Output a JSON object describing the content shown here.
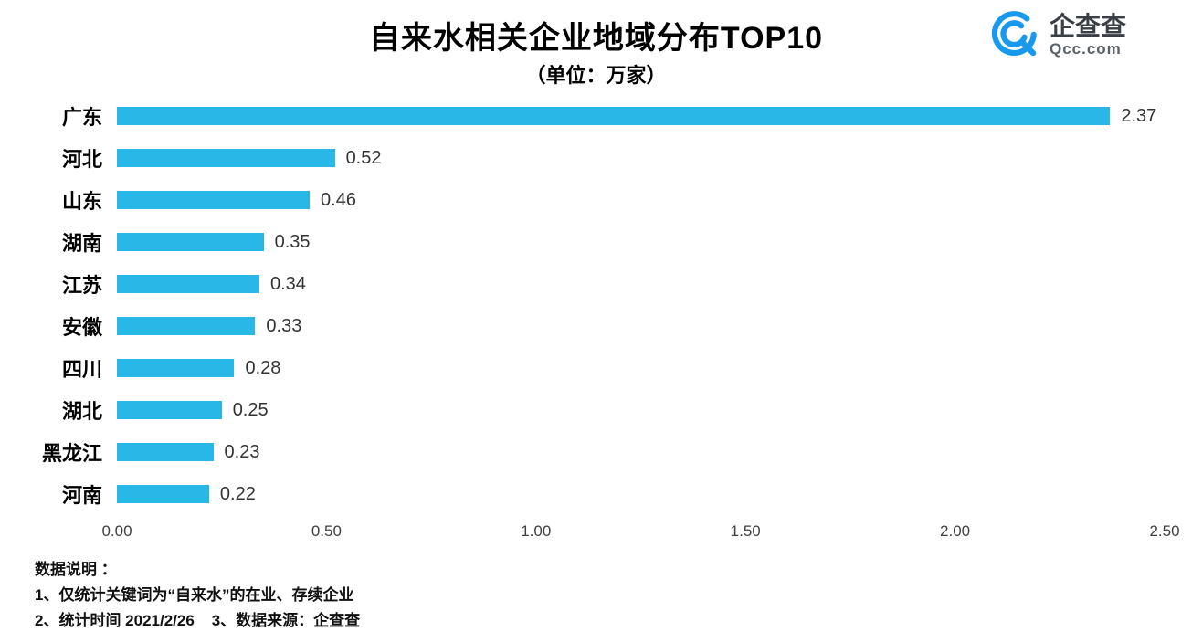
{
  "header": {
    "title": "自来水相关企业地域分布TOP10",
    "subtitle": "（单位：万家）",
    "logo": {
      "brand": "企查查",
      "domain": "Qcc.com",
      "color": "#1899ee"
    }
  },
  "chart_data": {
    "type": "bar",
    "orientation": "horizontal",
    "title": "自来水相关企业地域分布TOP10",
    "subtitle": "（单位：万家）",
    "categories": [
      "广东",
      "河北",
      "山东",
      "湖南",
      "江苏",
      "安徽",
      "四川",
      "湖北",
      "黑龙江",
      "河南"
    ],
    "values": [
      2.37,
      0.52,
      0.46,
      0.35,
      0.34,
      0.33,
      0.28,
      0.25,
      0.23,
      0.22
    ],
    "value_labels": [
      "2.37",
      "0.52",
      "0.46",
      "0.35",
      "0.34",
      "0.33",
      "0.28",
      "0.25",
      "0.23",
      "0.22"
    ],
    "xlabel": "",
    "ylabel": "",
    "xlim": [
      0,
      2.5
    ],
    "x_ticks": [
      "0.00",
      "0.50",
      "1.00",
      "1.50",
      "2.00",
      "2.50"
    ],
    "bar_color": "#29b7e8",
    "grid": false,
    "legend": false
  },
  "footer": {
    "lines": [
      "数据说明 ：",
      "1、仅统计关键词为“自来水”的在业、存续企业",
      "2、统计时间 2021/2/26    3、数据来源：企查查"
    ]
  }
}
